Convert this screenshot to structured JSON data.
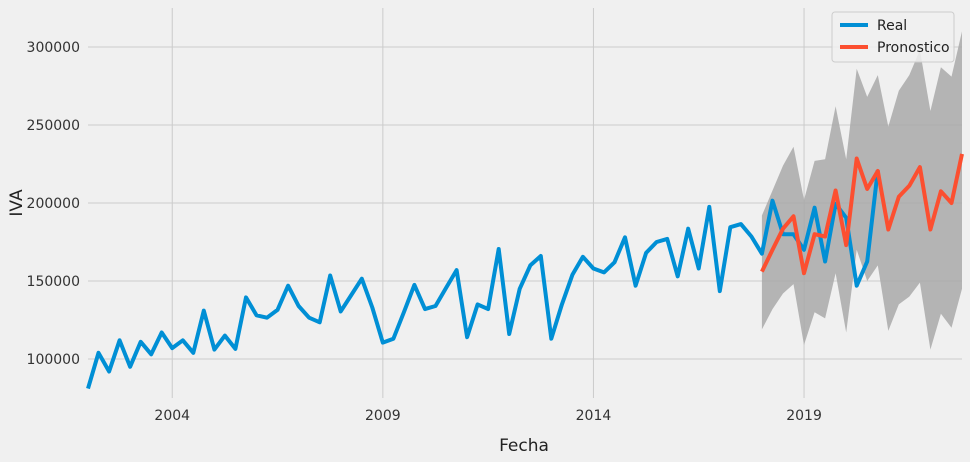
{
  "chart_data": {
    "type": "line",
    "title": "",
    "xlabel": "Fecha",
    "ylabel": "IVA",
    "xlim": [
      2002.0,
      2022.75
    ],
    "ylim": [
      75000,
      325000
    ],
    "x_ticks": [
      2004,
      2009,
      2014,
      2019
    ],
    "y_ticks": [
      100000,
      150000,
      200000,
      250000,
      300000
    ],
    "grid": true,
    "legend_position": "top-right",
    "colors": {
      "real": "#008fd5",
      "forecast": "#fc4f30",
      "band": "#a9a9a9"
    },
    "series": [
      {
        "name": "Real",
        "x": [
          2002.0,
          2002.25,
          2002.5,
          2002.75,
          2003.0,
          2003.25,
          2003.5,
          2003.75,
          2004.0,
          2004.25,
          2004.5,
          2004.75,
          2005.0,
          2005.25,
          2005.5,
          2005.75,
          2006.0,
          2006.25,
          2006.5,
          2006.75,
          2007.0,
          2007.25,
          2007.5,
          2007.75,
          2008.0,
          2008.25,
          2008.5,
          2008.75,
          2009.0,
          2009.25,
          2009.5,
          2009.75,
          2010.0,
          2010.25,
          2010.5,
          2010.75,
          2011.0,
          2011.25,
          2011.5,
          2011.75,
          2012.0,
          2012.25,
          2012.5,
          2012.75,
          2013.0,
          2013.25,
          2013.5,
          2013.75,
          2014.0,
          2014.25,
          2014.5,
          2014.75,
          2015.0,
          2015.25,
          2015.5,
          2015.75,
          2016.0,
          2016.25,
          2016.5,
          2016.75,
          2017.0,
          2017.25,
          2017.5,
          2017.75,
          2018.0,
          2018.25,
          2018.5,
          2018.75,
          2019.0,
          2019.25,
          2019.5,
          2019.75,
          2020.0,
          2020.25,
          2020.5,
          2020.75
        ],
        "values": [
          81000,
          104000,
          92000,
          112000,
          95000,
          111000,
          103000,
          117000,
          107000,
          112000,
          104000,
          131000,
          106000,
          115000,
          106500,
          139500,
          128000,
          126500,
          131500,
          147000,
          134000,
          126500,
          123500,
          153500,
          130500,
          141000,
          151500,
          133000,
          110500,
          113000,
          130000,
          147500,
          132000,
          134000,
          145500,
          157000,
          114000,
          135000,
          132000,
          170500,
          116000,
          145000,
          160000,
          166000,
          113000,
          135000,
          154000,
          165500,
          158000,
          155500,
          162000,
          178000,
          147000,
          168000,
          175000,
          177000,
          153000,
          183500,
          158000,
          197500,
          143500,
          184500,
          186500,
          178500,
          167500,
          201500,
          180000,
          180000,
          170000,
          197000,
          162500,
          199500,
          190500,
          147000,
          162500,
          221000
        ]
      },
      {
        "name": "Pronostico",
        "x": [
          2018.0,
          2018.25,
          2018.5,
          2018.75,
          2019.0,
          2019.25,
          2019.5,
          2019.75,
          2020.0,
          2020.25,
          2020.5,
          2020.75,
          2021.0,
          2021.25,
          2021.5,
          2021.75,
          2022.0,
          2022.25,
          2022.5,
          2022.75
        ],
        "values": [
          156000,
          170000,
          183500,
          191500,
          155000,
          180000,
          178500,
          208000,
          173000,
          228500,
          209000,
          220500,
          183000,
          204000,
          211000,
          223000,
          183000,
          207500,
          200000,
          231500
        ],
        "lower": [
          119000,
          132000,
          142000,
          148000,
          109000,
          130000,
          126000,
          155000,
          117000,
          170000,
          150000,
          160000,
          118000,
          135000,
          140000,
          149000,
          106000,
          129000,
          120000,
          145000
        ],
        "upper": [
          192000,
          208000,
          224000,
          236000,
          202000,
          227000,
          228000,
          262000,
          228000,
          286000,
          268000,
          282000,
          249000,
          272000,
          282000,
          298000,
          259000,
          287000,
          281000,
          310000
        ]
      }
    ]
  }
}
